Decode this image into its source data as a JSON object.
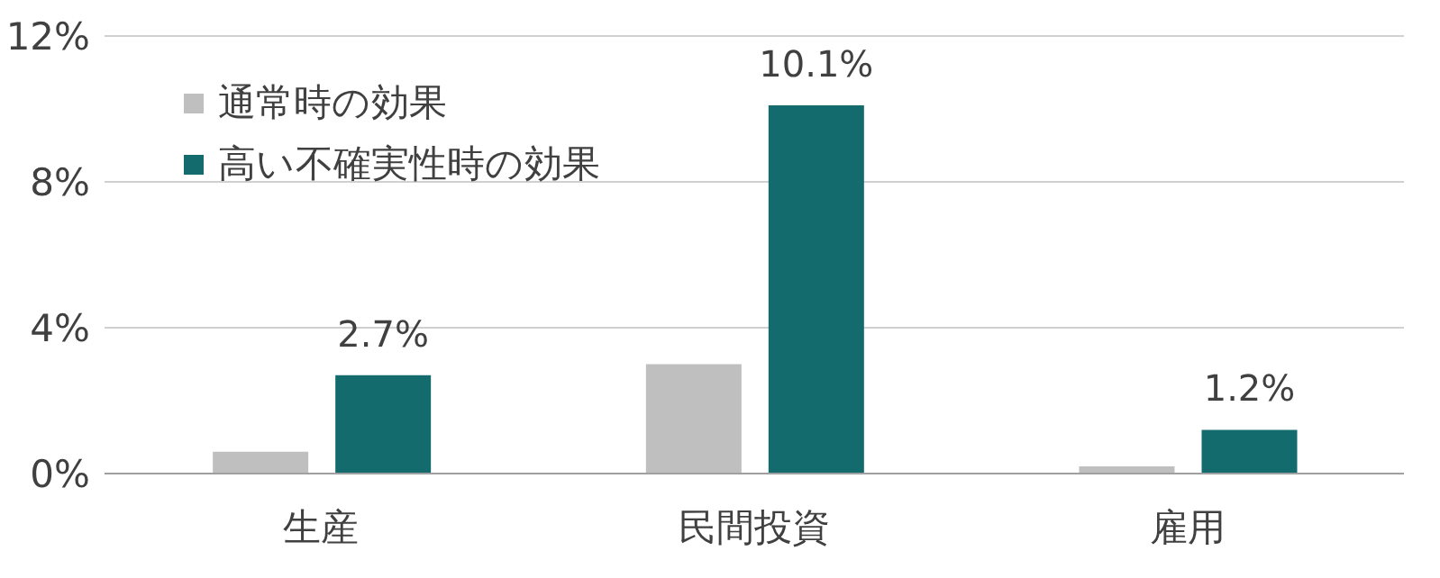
{
  "chart_data": {
    "type": "bar",
    "categories": [
      "生産",
      "民間投資",
      "雇用"
    ],
    "series": [
      {
        "name": "通常時の効果",
        "color": "#bfbfbf",
        "values": [
          0.6,
          3.0,
          0.2
        ]
      },
      {
        "name": "高い不確実性時の効果",
        "color": "#136b6e",
        "values": [
          2.7,
          10.1,
          1.2
        ],
        "value_labels": [
          "2.7%",
          "10.1%",
          "1.2%"
        ]
      }
    ],
    "ylim": [
      0,
      12
    ],
    "yticks": [
      {
        "value": 0,
        "label": "0%"
      },
      {
        "value": 4,
        "label": "4%"
      },
      {
        "value": 8,
        "label": "8%"
      },
      {
        "value": 12,
        "label": "12%"
      }
    ],
    "grid": "y",
    "legend": "top left"
  }
}
